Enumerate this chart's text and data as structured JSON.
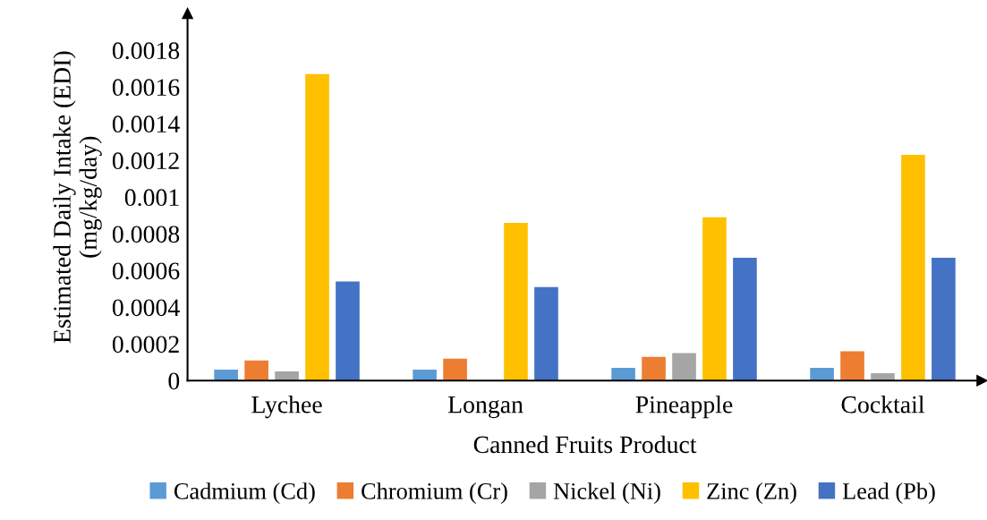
{
  "chart_data": {
    "type": "bar",
    "xlabel": "Canned Fruits Product",
    "ylabel": "Estimated Daily Intake (EDI)\n(mg/kg/day)",
    "categories": [
      "Lychee",
      "Longan",
      "Pineapple",
      "Cocktail"
    ],
    "series": [
      {
        "name": "Cadmium (Cd)",
        "color": "#5b9bd5",
        "values": [
          6e-05,
          6e-05,
          7e-05,
          7e-05
        ]
      },
      {
        "name": "Chromium (Cr)",
        "color": "#ed7d31",
        "values": [
          0.00011,
          0.00012,
          0.00013,
          0.00016
        ]
      },
      {
        "name": "Nickel (Ni)",
        "color": "#a5a5a5",
        "values": [
          5e-05,
          0,
          0.00015,
          4e-05
        ]
      },
      {
        "name": "Zinc (Zn)",
        "color": "#ffc000",
        "values": [
          0.00167,
          0.00086,
          0.00089,
          0.00123
        ]
      },
      {
        "name": "Lead (Pb)",
        "color": "#4472c4",
        "values": [
          0.00054,
          0.00051,
          0.00067,
          0.00067
        ]
      }
    ],
    "ylim": [
      0,
      0.002
    ],
    "yticks": [
      0,
      0.0002,
      0.0004,
      0.0006,
      0.0008,
      0.001,
      0.0012,
      0.0014,
      0.0016,
      0.0018
    ],
    "grid": false,
    "legend": "bottom"
  }
}
